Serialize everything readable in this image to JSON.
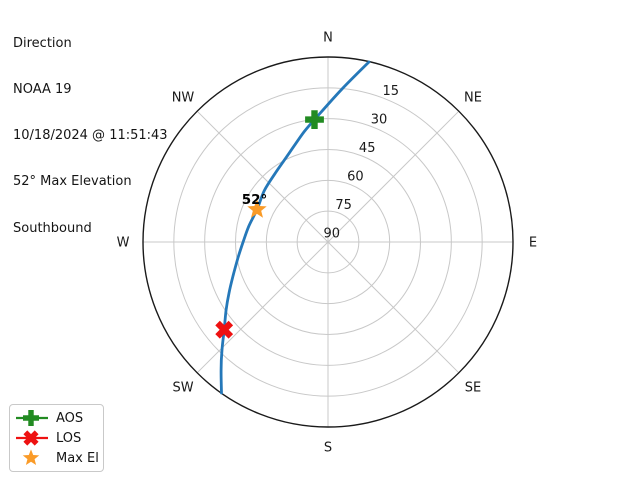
{
  "header": {
    "title": "Direction",
    "satellite": "NOAA 19",
    "timestamp": "10/18/2024 @ 11:51:43",
    "max_elevation": "52° Max Elevation",
    "direction": "Southbound"
  },
  "chart_data": {
    "type": "polar_sky_plot",
    "title": "Direction",
    "description": "Azimuth/elevation sky track of a satellite pass; horizon at outer ring (0° elevation), zenith 90° at center",
    "compass_labels": [
      "N",
      "NE",
      "E",
      "SE",
      "S",
      "SW",
      "W",
      "NW"
    ],
    "compass_azimuths_deg": [
      0,
      45,
      90,
      135,
      180,
      225,
      270,
      315
    ],
    "elevation_tick_labels": [
      "15",
      "30",
      "45",
      "60",
      "75",
      "90"
    ],
    "elevation_rings_deg": [
      15,
      30,
      45,
      60,
      75,
      90
    ],
    "radial_label_azimuth_deg": 22.5,
    "grid_color": "#c8c8c8",
    "outline_color": "#1a1a1a",
    "track": {
      "name": "NOAA 19 pass track (southbound)",
      "color": "#2578b9",
      "points_az_el_deg": [
        [
          12.8,
          0.2
        ],
        [
          5.2,
          15.3
        ],
        [
          353.7,
          30.1
        ],
        [
          347.7,
          35.2
        ],
        [
          340.5,
          40.5
        ],
        [
          332.3,
          44.7
        ],
        [
          321.8,
          48.0
        ],
        [
          308.9,
          50.2
        ],
        [
          294.6,
          52.0
        ],
        [
          281.1,
          50.7
        ],
        [
          270.0,
          48.7
        ],
        [
          259.9,
          45.5
        ],
        [
          250.3,
          40.9
        ],
        [
          242.7,
          35.8
        ],
        [
          236.3,
          30.4
        ],
        [
          229.8,
          23.9
        ],
        [
          224.5,
          16.4
        ],
        [
          219.9,
          8.9
        ],
        [
          215.2,
          0.1
        ]
      ]
    },
    "markers": [
      {
        "id": "aos",
        "label": "AOS",
        "shape": "plus-filled",
        "color": "#228b22",
        "az_deg": 353.7,
        "el_deg": 30.1
      },
      {
        "id": "los",
        "label": "LOS",
        "shape": "x-filled",
        "color": "#ee1111",
        "az_deg": 229.8,
        "el_deg": 23.9
      },
      {
        "id": "max-el",
        "label": "Max El",
        "shape": "star",
        "color": "#fa9b28",
        "az_deg": 294.6,
        "el_deg": 52.0,
        "annotation": "52°"
      }
    ],
    "annotation": "52°",
    "legend_position": "bottom-left"
  },
  "legend": {
    "items": [
      {
        "label": "AOS",
        "marker": "plus-filled",
        "color": "#228b22",
        "line": true
      },
      {
        "label": "LOS",
        "marker": "x-filled",
        "color": "#ee1111",
        "line": true
      },
      {
        "label": "Max El",
        "marker": "star",
        "color": "#fa9b28",
        "line": false
      }
    ]
  }
}
